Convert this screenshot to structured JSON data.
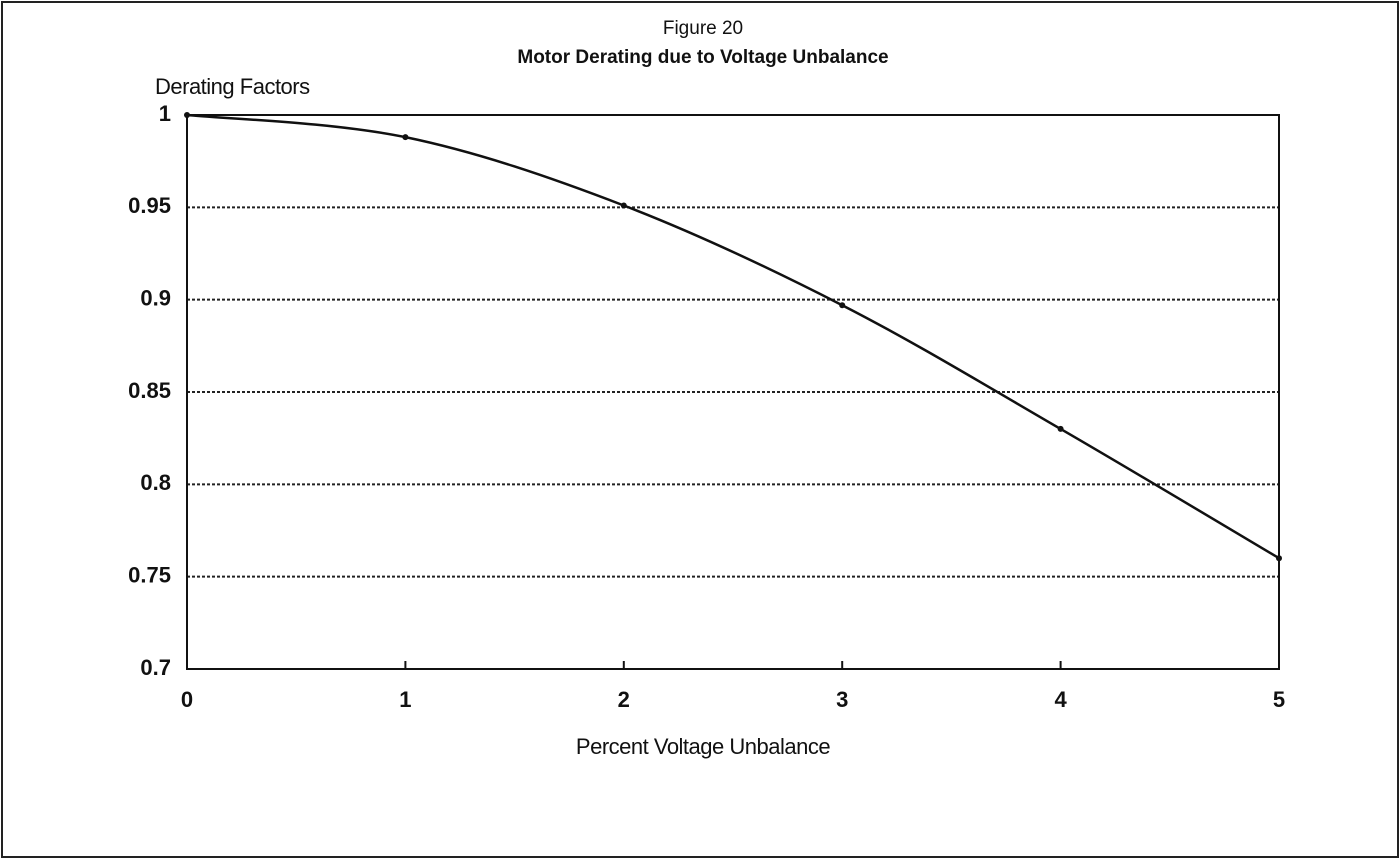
{
  "chart_data": {
    "type": "line",
    "figure_label": "Figure 20",
    "title": "Motor Derating due to Voltage Unbalance",
    "y_label": "Derating Factors",
    "x_label": "Percent Voltage Unbalance",
    "x": [
      0,
      1,
      2,
      3,
      4,
      5
    ],
    "series": [
      {
        "name": "Derating Factor",
        "color": "#111111",
        "values": [
          1.0,
          0.988,
          0.951,
          0.897,
          0.83,
          0.76
        ]
      }
    ],
    "xlim": [
      0,
      5
    ],
    "xticks": [
      0,
      1,
      2,
      3,
      4,
      5
    ],
    "ylim": [
      0.7,
      1
    ],
    "yticks": [
      0.7,
      0.75,
      0.8,
      0.85,
      0.9,
      0.95,
      1
    ],
    "grid": true
  }
}
